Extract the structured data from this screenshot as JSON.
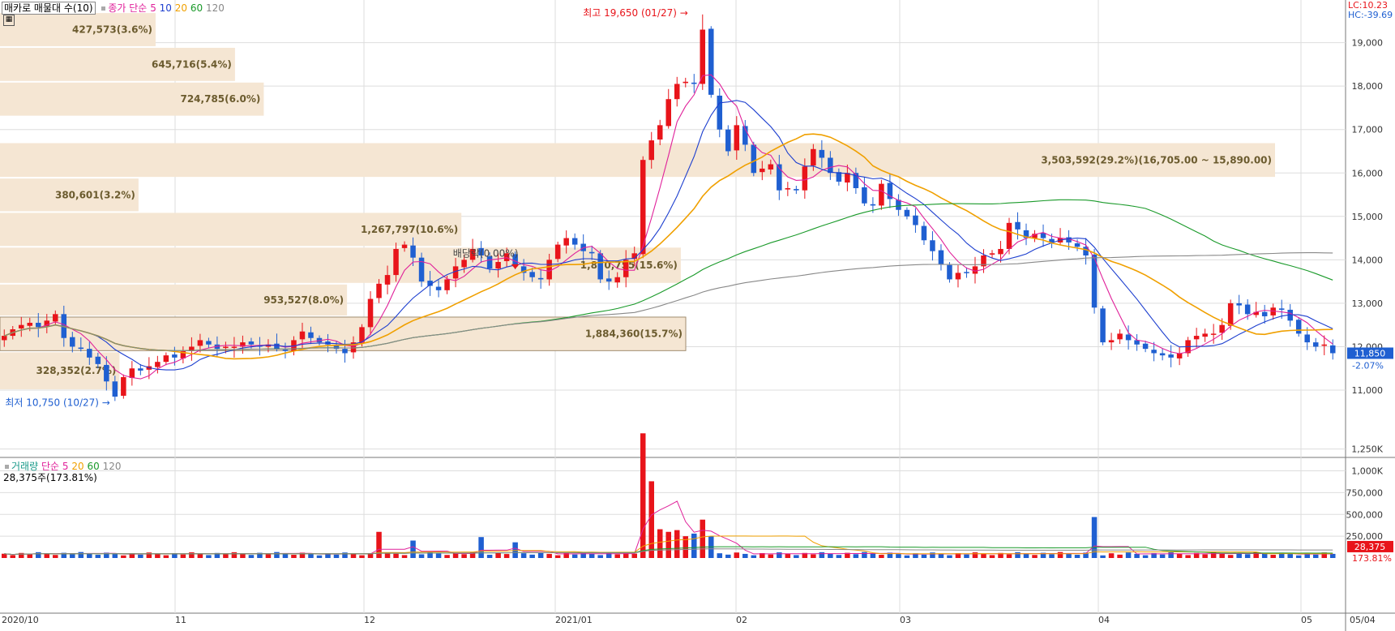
{
  "header": {
    "indicator": "매카로 매물대 수(10)",
    "price_ma_label": "종가 단순",
    "ma": [
      {
        "label": "5",
        "color": "#e0219a"
      },
      {
        "label": "10",
        "color": "#1d3fcf"
      },
      {
        "label": "20",
        "color": "#f0a000"
      },
      {
        "label": "60",
        "color": "#1a9a2a"
      },
      {
        "label": "120",
        "color": "#888888"
      }
    ],
    "lc": "LC:10.23",
    "hc": "HC:-39.69"
  },
  "volume_header": {
    "title": "거래량",
    "ma_label": "단순",
    "ma": [
      {
        "label": "5",
        "color": "#e0219a"
      },
      {
        "label": "20",
        "color": "#f0a000"
      },
      {
        "label": "60",
        "color": "#1a9a2a"
      },
      {
        "label": "120",
        "color": "#888888"
      }
    ],
    "current": "28,375주(173.81%)"
  },
  "colors": {
    "up": "#e8141a",
    "down": "#1f5fd1",
    "profile": "#f5e6d3",
    "grid": "#dddddd"
  },
  "chart_data": {
    "type": "candlestick",
    "price_axis": {
      "ticks": [
        11000,
        12000,
        13000,
        14000,
        15000,
        16000,
        17000,
        18000,
        19000
      ],
      "labels": [
        "11,000",
        "12,000",
        "13,000",
        "14,000",
        "15,000",
        "16,000",
        "17,000",
        "18,000",
        "19,000"
      ]
    },
    "volume_axis": {
      "ticks": [
        250000,
        500000,
        750000,
        1000000,
        1250000
      ],
      "labels": [
        "250,000",
        "500,000",
        "750,000",
        "1,000K",
        "1,250K"
      ]
    },
    "time_labels": [
      "2020/10",
      "11",
      "12",
      "2021/01",
      "02",
      "03",
      "04",
      "05",
      "05/04"
    ],
    "high": {
      "label": "최고 19,650 (01/27)",
      "value": 19650
    },
    "low": {
      "label": "최저 10,750 (10/27)",
      "value": 10750
    },
    "last_price": {
      "label": "11,850",
      "value": 11850,
      "change": "-2.07%"
    },
    "last_volume": {
      "label": "28,375",
      "change": "173.81%"
    },
    "dividend_label": "배당락(0.00%)",
    "volume_profile": [
      {
        "label": "427,573(3.6%)",
        "price_lo": 18900,
        "price_hi": 19700
      },
      {
        "label": "645,716(5.4%)",
        "price_lo": 18100,
        "price_hi": 18900
      },
      {
        "label": "724,785(6.0%)",
        "price_lo": 17300,
        "price_hi": 18100
      },
      {
        "label": "3,503,592(29.2%)(16,705.00 ~ 15,890.00)",
        "price_lo": 15890,
        "price_hi": 16705
      },
      {
        "label": "380,601(3.2%)",
        "price_lo": 15100,
        "price_hi": 15890
      },
      {
        "label": "1,267,797(10.6%)",
        "price_lo": 14300,
        "price_hi": 15100
      },
      {
        "label": "1,870,755(15.6%)",
        "price_lo": 13450,
        "price_hi": 14300
      },
      {
        "label": "953,527(8.0%)",
        "price_lo": 12700,
        "price_hi": 13450
      },
      {
        "label": "1,884,360(15.7%)",
        "price_lo": 11890,
        "price_hi": 12700
      },
      {
        "label": "328,352(2.7%)",
        "price_lo": 11000,
        "price_hi": 11890
      }
    ],
    "close": [
      12250,
      12400,
      12500,
      12550,
      12450,
      12600,
      12750,
      12200,
      12000,
      11950,
      11750,
      11600,
      11200,
      10850,
      11300,
      11500,
      11450,
      11550,
      11650,
      11800,
      11750,
      11900,
      12000,
      12150,
      12050,
      11950,
      12000,
      12000,
      12100,
      12050,
      12000,
      12050,
      11950,
      11900,
      12150,
      12350,
      12200,
      12100,
      12050,
      11950,
      11850,
      12100,
      12450,
      13100,
      13450,
      13650,
      14250,
      14350,
      14050,
      13500,
      13400,
      13300,
      13550,
      13850,
      14000,
      14250,
      14100,
      13800,
      13950,
      14150,
      13850,
      13700,
      13600,
      13550,
      14000,
      14350,
      14500,
      14350,
      14200,
      14150,
      13550,
      13500,
      13600,
      14000,
      14150,
      16300,
      16750,
      17100,
      17700,
      18050,
      18100,
      18050,
      19300,
      17800,
      17000,
      16500,
      17100,
      16650,
      16000,
      16100,
      16200,
      15600,
      15650,
      15600,
      16150,
      16550,
      16350,
      16000,
      15800,
      16000,
      15650,
      15300,
      15250,
      15750,
      15400,
      15150,
      15000,
      14800,
      14450,
      14200,
      13900,
      13550,
      13700,
      13700,
      13850,
      14100,
      14150,
      14250,
      14850,
      14700,
      14500,
      14600,
      14500,
      14400,
      14500,
      14400,
      14300,
      14100,
      12900,
      12100,
      12150,
      12300,
      12150,
      12050,
      11950,
      11850,
      11800,
      11750,
      11850,
      12150,
      12250,
      12300,
      12300,
      12500,
      13000,
      12950,
      12750,
      12800,
      12700,
      12900,
      12850,
      12600,
      12300,
      12100,
      12000,
      12050,
      11850
    ]
  }
}
